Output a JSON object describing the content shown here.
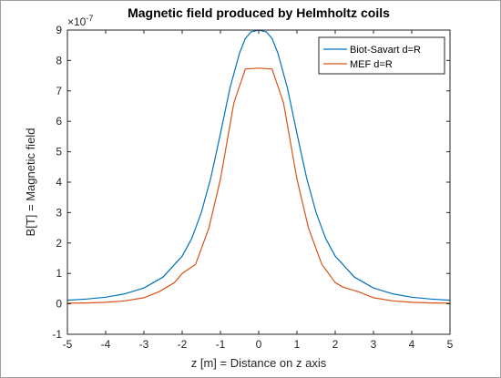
{
  "chart_data": {
    "type": "line",
    "title": "Magnetic field produced by Helmholtz coils",
    "xlabel": "z [m] = Distance on z axis",
    "ylabel": "B[T] = Magnetic field",
    "y_exponent_prefix": "×10",
    "y_exponent_power": "-7",
    "xlim": [
      -5,
      5
    ],
    "ylim": [
      -1,
      9
    ],
    "xticks": [
      -5,
      -4,
      -3,
      -2,
      -1,
      0,
      1,
      2,
      3,
      4,
      5
    ],
    "yticks": [
      -1,
      0,
      1,
      2,
      3,
      4,
      5,
      6,
      7,
      8,
      9
    ],
    "grid": false,
    "legend_position": "top-right",
    "series": [
      {
        "name": "Biot-Savart d=R",
        "color": "#0072bd",
        "x": [
          -5,
          -4.5,
          -4,
          -3.5,
          -3,
          -2.5,
          -2,
          -1.75,
          -1.5,
          -1.25,
          -1,
          -0.75,
          -0.5,
          -0.35,
          -0.2,
          0,
          0.2,
          0.35,
          0.5,
          0.75,
          1,
          1.25,
          1.5,
          1.75,
          2,
          2.5,
          3,
          3.5,
          4,
          4.5,
          5
        ],
        "y": [
          0.12,
          0.16,
          0.22,
          0.33,
          0.52,
          0.88,
          1.57,
          2.15,
          3.0,
          4.15,
          5.6,
          7.1,
          8.25,
          8.72,
          8.94,
          9.0,
          8.94,
          8.72,
          8.25,
          7.1,
          5.6,
          4.15,
          3.0,
          2.15,
          1.57,
          0.88,
          0.52,
          0.33,
          0.22,
          0.16,
          0.12
        ]
      },
      {
        "name": "MEF d=R",
        "color": "#d95319",
        "x": [
          -5,
          -4.5,
          -4,
          -3.5,
          -3,
          -2.6,
          -2.2,
          -2.0,
          -1.65,
          -1.3,
          -1.0,
          -0.65,
          -0.35,
          0,
          0.35,
          0.65,
          1.0,
          1.3,
          1.65,
          2.0,
          2.2,
          2.6,
          3,
          3.5,
          4,
          4.5,
          5
        ],
        "y": [
          0.02,
          0.03,
          0.05,
          0.1,
          0.2,
          0.4,
          0.7,
          1.0,
          1.3,
          2.5,
          4.1,
          6.6,
          7.72,
          7.75,
          7.72,
          6.6,
          4.1,
          2.5,
          1.3,
          0.7,
          0.55,
          0.4,
          0.2,
          0.1,
          0.05,
          0.03,
          0.02
        ]
      }
    ]
  }
}
